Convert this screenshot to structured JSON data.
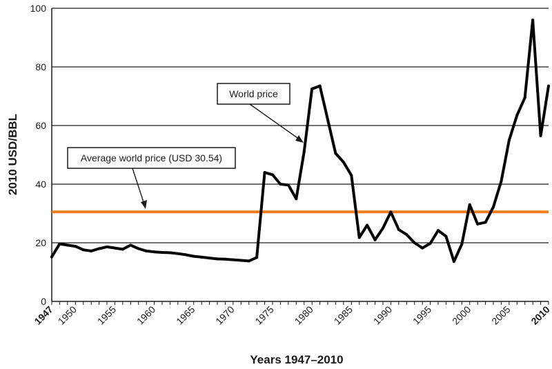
{
  "chart_data": {
    "type": "line",
    "title": "",
    "xlabel": "Years 1947–2010",
    "ylabel": "2010 USD/BBL",
    "xlim": [
      1947,
      2010
    ],
    "ylim": [
      0,
      100
    ],
    "grid": "horizontal",
    "y_ticks": [
      0,
      20,
      40,
      60,
      80,
      100
    ],
    "x_tick_labels": [
      {
        "year": 1947,
        "label": "1947",
        "bold": true
      },
      {
        "year": 1950,
        "label": "1950",
        "bold": false
      },
      {
        "year": 1955,
        "label": "1955",
        "bold": false
      },
      {
        "year": 1960,
        "label": "1960",
        "bold": false
      },
      {
        "year": 1965,
        "label": "1965",
        "bold": false
      },
      {
        "year": 1970,
        "label": "1970",
        "bold": false
      },
      {
        "year": 1975,
        "label": "1975",
        "bold": false
      },
      {
        "year": 1980,
        "label": "1980",
        "bold": false
      },
      {
        "year": 1985,
        "label": "1985",
        "bold": false
      },
      {
        "year": 1990,
        "label": "1990",
        "bold": false
      },
      {
        "year": 1995,
        "label": "1995",
        "bold": false
      },
      {
        "year": 2000,
        "label": "2000",
        "bold": false
      },
      {
        "year": 2005,
        "label": "2005",
        "bold": false
      },
      {
        "year": 2010,
        "label": "2010",
        "bold": true
      }
    ],
    "series": [
      {
        "name": "World price",
        "color": "#000000",
        "x": [
          1947,
          1948,
          1949,
          1950,
          1951,
          1952,
          1953,
          1954,
          1955,
          1956,
          1957,
          1958,
          1959,
          1960,
          1961,
          1962,
          1963,
          1964,
          1965,
          1966,
          1967,
          1968,
          1969,
          1970,
          1971,
          1972,
          1973,
          1974,
          1975,
          1976,
          1977,
          1978,
          1979,
          1980,
          1981,
          1982,
          1983,
          1984,
          1985,
          1986,
          1987,
          1988,
          1989,
          1990,
          1991,
          1992,
          1993,
          1994,
          1995,
          1996,
          1997,
          1998,
          1999,
          2000,
          2001,
          2002,
          2003,
          2004,
          2005,
          2006,
          2007,
          2008,
          2009,
          2010
        ],
        "y": [
          15.2,
          19.6,
          19.2,
          18.8,
          17.6,
          17.2,
          18.0,
          18.6,
          18.2,
          17.8,
          19.2,
          18.0,
          17.2,
          16.9,
          16.7,
          16.6,
          16.3,
          15.9,
          15.4,
          15.1,
          14.8,
          14.5,
          14.4,
          14.2,
          14.0,
          13.8,
          15.0,
          44.0,
          43.2,
          40.0,
          39.7,
          35.0,
          51.0,
          72.5,
          73.5,
          62.0,
          50.5,
          47.5,
          43.0,
          21.8,
          26.0,
          21.0,
          25.0,
          30.5,
          24.5,
          22.8,
          20.0,
          18.2,
          19.8,
          24.2,
          22.2,
          13.6,
          19.5,
          33.0,
          26.4,
          27.0,
          32.2,
          41.0,
          55.0,
          63.5,
          69.5,
          96.0,
          56.5,
          73.5
        ]
      },
      {
        "name": "Average world price (USD 30.54)",
        "color": "#ef7d1a",
        "constant": 30.54
      }
    ],
    "annotations": [
      {
        "text": "World price",
        "points_to": {
          "x": 1979.3,
          "y": 54
        }
      },
      {
        "text": "Average world price (USD 30.54)",
        "points_to": {
          "x": 1958.5,
          "y": 31.5
        }
      }
    ]
  }
}
